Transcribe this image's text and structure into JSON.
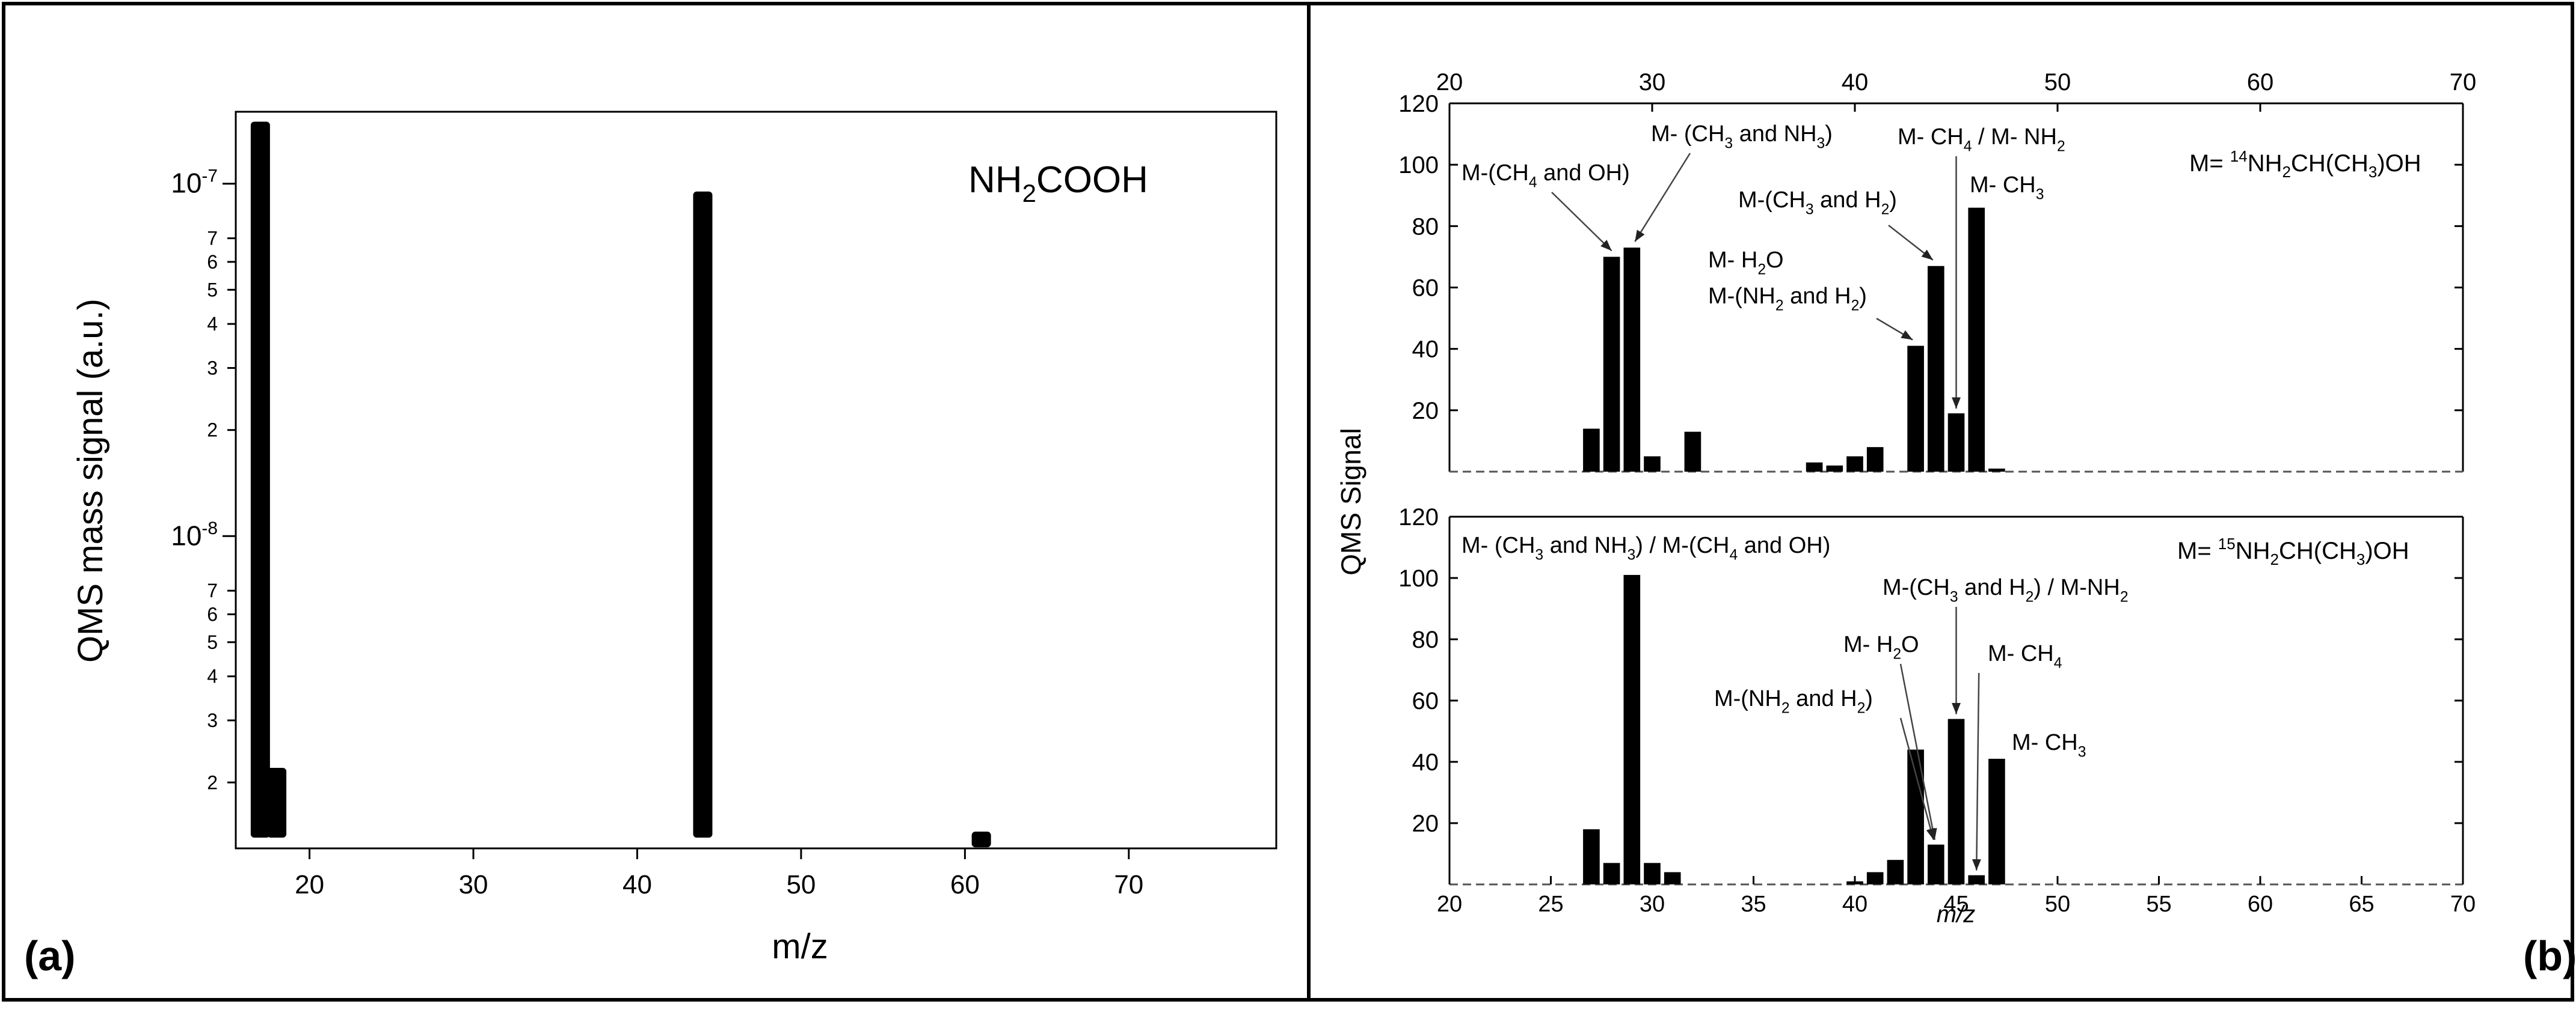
{
  "panel_a": {
    "label": "(a)",
    "compound": "NH",
    "compound_sub": "2",
    "compound_rest": "COOH"
  },
  "panel_b": {
    "label": "(b)",
    "ylabel": "QMS Signal",
    "xlabel": "m/z",
    "top_molecule_pre": "M= ",
    "top_molecule_sup": "14",
    "top_molecule_main": "NH",
    "top_molecule_sub": "2",
    "top_molecule_rest": "CH(CH",
    "top_molecule_sub2": "3",
    "top_molecule_end": ")OH",
    "bottom_molecule_pre": "M= ",
    "bottom_molecule_sup": "15",
    "bottom_molecule_main": "NH",
    "bottom_molecule_sub": "2",
    "bottom_molecule_rest": "CH(CH",
    "bottom_molecule_sub2": "3",
    "bottom_molecule_end": ")OH"
  },
  "chart_data": [
    {
      "id": "a",
      "type": "bar",
      "title": "",
      "xlabel": "m/z",
      "ylabel": "QMS mass signal (a.u.)",
      "yscale": "log",
      "xlim": [
        15.5,
        79
      ],
      "ylim": [
        1.3e-09,
        1.6e-07
      ],
      "xticks": [
        20,
        30,
        40,
        50,
        60,
        70
      ],
      "yticks": [
        {
          "value": 1e-07,
          "base": "10",
          "exp": "-7"
        },
        {
          "value": 7e-08,
          "label": "7"
        },
        {
          "value": 6e-08,
          "label": "6"
        },
        {
          "value": 5e-08,
          "label": "5"
        },
        {
          "value": 4e-08,
          "label": "4"
        },
        {
          "value": 3e-08,
          "label": "3"
        },
        {
          "value": 2e-08,
          "label": "2"
        },
        {
          "value": 1e-08,
          "base": "10",
          "exp": "-8"
        },
        {
          "value": 7e-09,
          "label": "7"
        },
        {
          "value": 6e-09,
          "label": "6"
        },
        {
          "value": 5e-09,
          "label": "5"
        },
        {
          "value": 4e-09,
          "label": "4"
        },
        {
          "value": 3e-09,
          "label": "3"
        },
        {
          "value": 2e-09,
          "label": "2"
        }
      ],
      "bars": [
        {
          "x": 17,
          "y": 1.5e-07
        },
        {
          "x": 18,
          "y": 2.2e-09
        },
        {
          "x": 44,
          "y": 9.5e-08
        },
        {
          "x": 61,
          "y": 1.45e-09
        }
      ],
      "baseline": 1.4e-09,
      "grid": false
    },
    {
      "id": "b-top",
      "type": "bar",
      "xlabel": "",
      "ylabel": "QMS Signal",
      "xlim": [
        20,
        70
      ],
      "ylim": [
        0,
        120
      ],
      "xticks": [
        20,
        30,
        40,
        50,
        60,
        70
      ],
      "yticks": [
        20,
        40,
        60,
        80,
        100,
        120
      ],
      "bars": [
        {
          "x": 27,
          "y": 14
        },
        {
          "x": 28,
          "y": 70
        },
        {
          "x": 29,
          "y": 73
        },
        {
          "x": 30,
          "y": 5
        },
        {
          "x": 32,
          "y": 13
        },
        {
          "x": 38,
          "y": 3
        },
        {
          "x": 39,
          "y": 2
        },
        {
          "x": 40,
          "y": 5
        },
        {
          "x": 41,
          "y": 8
        },
        {
          "x": 43,
          "y": 41
        },
        {
          "x": 44,
          "y": 67
        },
        {
          "x": 45,
          "y": 19
        },
        {
          "x": 46,
          "y": 86
        },
        {
          "x": 47,
          "y": 1
        }
      ],
      "annotations": [
        {
          "parts": [
            [
              "M-(CH",
              ""
            ],
            [
              "4",
              "sub"
            ],
            [
              " and OH)",
              ""
            ]
          ],
          "arrow_to_x": 28
        },
        {
          "parts": [
            [
              "M- (CH",
              ""
            ],
            [
              "3",
              "sub"
            ],
            [
              " and NH",
              ""
            ],
            [
              "3",
              "sub"
            ],
            [
              ")",
              ""
            ]
          ],
          "arrow_to_x": 29
        },
        {
          "parts": [
            [
              "M-(CH",
              ""
            ],
            [
              "3",
              "sub"
            ],
            [
              " and H",
              ""
            ],
            [
              "2",
              "sub"
            ],
            [
              ")",
              ""
            ]
          ],
          "arrow_to_x": 44
        },
        {
          "parts": [
            [
              "M- H",
              ""
            ],
            [
              "2",
              "sub"
            ],
            [
              "O",
              ""
            ]
          ],
          "arrow_to_x": null
        },
        {
          "parts": [
            [
              "M-(NH",
              ""
            ],
            [
              "2",
              "sub"
            ],
            [
              " and H",
              ""
            ],
            [
              "2",
              "sub"
            ],
            [
              ")",
              ""
            ]
          ],
          "arrow_to_x": 43
        },
        {
          "parts": [
            [
              "M- CH",
              ""
            ],
            [
              "4",
              "sub"
            ],
            [
              " / M- NH",
              ""
            ],
            [
              "2",
              "sub"
            ]
          ],
          "arrow_to_x": 45
        },
        {
          "parts": [
            [
              "M- CH",
              ""
            ],
            [
              "3",
              "sub"
            ]
          ],
          "arrow_to_x": null
        }
      ]
    },
    {
      "id": "b-bottom",
      "type": "bar",
      "xlabel": "m/z",
      "ylabel": "QMS Signal",
      "xlim": [
        20,
        70
      ],
      "ylim": [
        0,
        120
      ],
      "xticks": [
        20,
        25,
        30,
        35,
        40,
        45,
        50,
        55,
        60,
        65,
        70
      ],
      "yticks": [
        20,
        40,
        60,
        80,
        100,
        120
      ],
      "bars": [
        {
          "x": 27,
          "y": 18
        },
        {
          "x": 28,
          "y": 7
        },
        {
          "x": 29,
          "y": 101
        },
        {
          "x": 30,
          "y": 7
        },
        {
          "x": 31,
          "y": 4
        },
        {
          "x": 40,
          "y": 1
        },
        {
          "x": 41,
          "y": 4
        },
        {
          "x": 42,
          "y": 8
        },
        {
          "x": 43,
          "y": 44
        },
        {
          "x": 44,
          "y": 13
        },
        {
          "x": 45,
          "y": 54
        },
        {
          "x": 46,
          "y": 3
        },
        {
          "x": 47,
          "y": 41
        }
      ],
      "annotations": [
        {
          "parts": [
            [
              "M- (CH",
              ""
            ],
            [
              "3",
              "sub"
            ],
            [
              " and NH",
              ""
            ],
            [
              "3",
              "sub"
            ],
            [
              ") / M-(CH",
              ""
            ],
            [
              "4",
              "sub"
            ],
            [
              " and OH)",
              ""
            ]
          ],
          "arrow_to_x": null
        },
        {
          "parts": [
            [
              "M-(CH",
              ""
            ],
            [
              "3",
              "sub"
            ],
            [
              " and H",
              ""
            ],
            [
              "2",
              "sub"
            ],
            [
              ") / M-NH",
              ""
            ],
            [
              "2",
              "sub"
            ]
          ],
          "arrow_to_x": 45
        },
        {
          "parts": [
            [
              "M- H",
              ""
            ],
            [
              "2",
              "sub"
            ],
            [
              "O",
              ""
            ]
          ],
          "arrow_to_x": 44
        },
        {
          "parts": [
            [
              "M-(NH",
              ""
            ],
            [
              "2",
              "sub"
            ],
            [
              " and H",
              ""
            ],
            [
              "2",
              "sub"
            ],
            [
              ")",
              ""
            ]
          ],
          "arrow_to_x": 44
        },
        {
          "parts": [
            [
              "M- CH",
              ""
            ],
            [
              "4",
              "sub"
            ]
          ],
          "arrow_to_x": 46
        },
        {
          "parts": [
            [
              "M- CH",
              ""
            ],
            [
              "3",
              "sub"
            ]
          ],
          "arrow_to_x": null
        }
      ]
    }
  ]
}
